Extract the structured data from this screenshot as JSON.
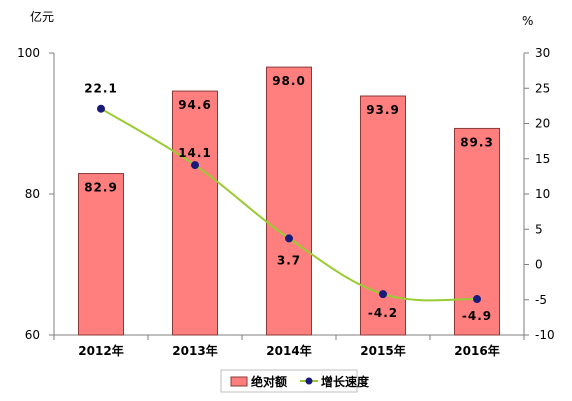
{
  "chart_data": {
    "type": "bar+line",
    "units": {
      "left": "亿元",
      "right": "%"
    },
    "categories": [
      "2012年",
      "2013年",
      "2014年",
      "2015年",
      "2016年"
    ],
    "series": [
      {
        "name": "绝对额",
        "type": "bar",
        "axis": "left",
        "values": [
          82.9,
          94.6,
          98.0,
          93.9,
          89.3
        ],
        "labels": [
          "82.9",
          "94.6",
          "98.0",
          "93.9",
          "89.3"
        ]
      },
      {
        "name": "增长速度",
        "type": "line",
        "axis": "right",
        "values": [
          22.1,
          14.1,
          3.7,
          -4.2,
          -4.9
        ],
        "labels": [
          "22.1",
          "14.1",
          "3.7",
          "-4.2",
          "-4.9"
        ]
      }
    ],
    "left_axis": {
      "ylim": [
        60,
        100
      ],
      "ticks": [
        60,
        80,
        100
      ]
    },
    "right_axis": {
      "ylim": [
        -10,
        30
      ],
      "ticks": [
        -10,
        -5,
        0,
        5,
        10,
        15,
        20,
        25,
        30
      ]
    },
    "grid": false,
    "legend_position": "bottom",
    "colors": {
      "bar_fill": "#ff7f7f",
      "bar_stroke": "#8b3a3a",
      "line": "#99cc33",
      "marker": "#1a1a7a",
      "axis": "#7f7f7f"
    }
  }
}
